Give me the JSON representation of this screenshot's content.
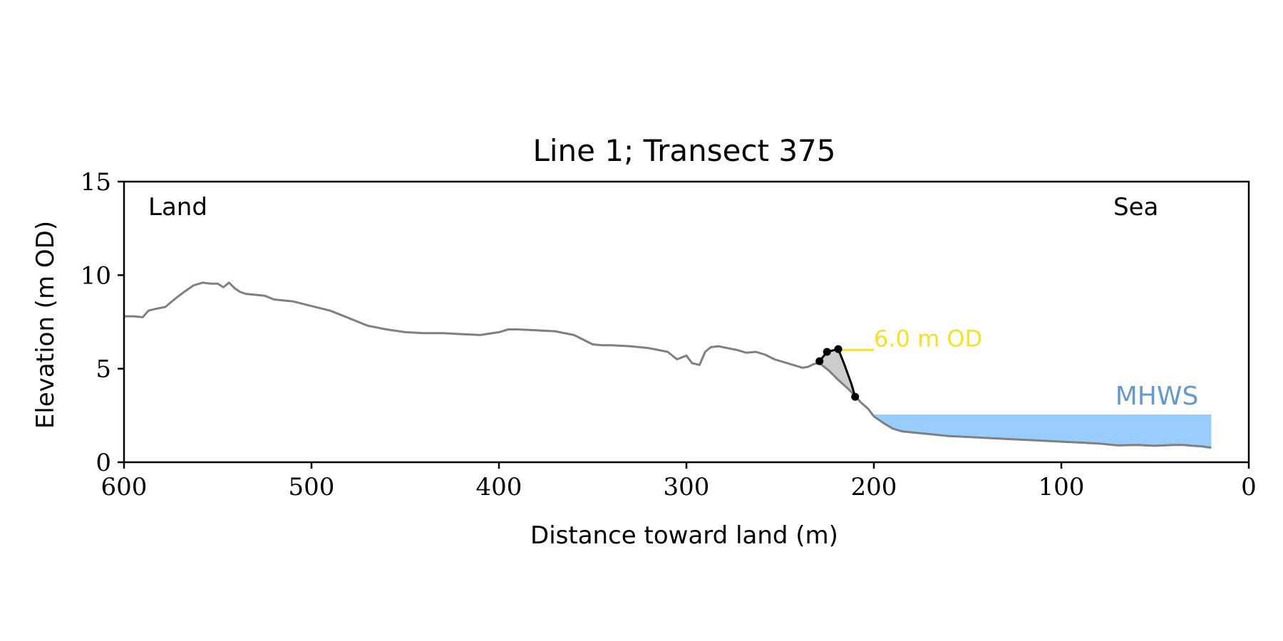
{
  "chart_data": {
    "type": "line",
    "title": "Line 1; Transect 375",
    "xlabel": "Distance toward land (m)",
    "ylabel": "Elevation (m OD)",
    "xlim": [
      600,
      0
    ],
    "ylim": [
      0,
      15
    ],
    "xticks": [
      600,
      500,
      400,
      300,
      200,
      100,
      0
    ],
    "yticks": [
      0,
      5,
      10,
      15
    ],
    "grid": false,
    "annotations": {
      "land_label": "Land",
      "sea_label": "Sea",
      "mhws_label": "MHWS",
      "threshold_label": "6.0 m OD"
    },
    "colors": {
      "profile": "#808080",
      "cliff": "#000000",
      "fill": "#cccccc",
      "mhws": "#99ccff",
      "mhws_text": "#6699cc",
      "threshold": "#f5e02a"
    },
    "profile": {
      "x": [
        600,
        595,
        590,
        587,
        583,
        578,
        572,
        568,
        563,
        558,
        554,
        550,
        547,
        544,
        541,
        538,
        535,
        530,
        525,
        520,
        510,
        500,
        490,
        480,
        470,
        460,
        450,
        440,
        430,
        420,
        410,
        400,
        395,
        390,
        380,
        370,
        360,
        350,
        345,
        340,
        330,
        320,
        310,
        305,
        300,
        297,
        293,
        290,
        287,
        283,
        278,
        273,
        268,
        263,
        258,
        253,
        248,
        243,
        238,
        235,
        232,
        229,
        224,
        219,
        214,
        210,
        207,
        203,
        200,
        195,
        190,
        185,
        180,
        170,
        160,
        150,
        140,
        130,
        120,
        110,
        100,
        90,
        80,
        75,
        70,
        60,
        55,
        50,
        45,
        40,
        35,
        30,
        25,
        22,
        20
      ],
      "y": [
        7.8,
        7.8,
        7.75,
        8.1,
        8.2,
        8.3,
        8.8,
        9.1,
        9.45,
        9.6,
        9.55,
        9.55,
        9.35,
        9.6,
        9.3,
        9.1,
        9.0,
        8.95,
        8.9,
        8.7,
        8.6,
        8.35,
        8.1,
        7.7,
        7.3,
        7.1,
        6.95,
        6.9,
        6.9,
        6.85,
        6.8,
        6.95,
        7.1,
        7.1,
        7.05,
        7.0,
        6.8,
        6.3,
        6.25,
        6.25,
        6.2,
        6.1,
        5.9,
        5.5,
        5.7,
        5.3,
        5.2,
        5.9,
        6.15,
        6.2,
        6.1,
        6.0,
        5.85,
        5.9,
        5.75,
        5.5,
        5.35,
        5.2,
        5.05,
        5.1,
        5.25,
        5.3,
        4.9,
        4.4,
        3.95,
        3.55,
        3.2,
        2.85,
        2.45,
        2.1,
        1.8,
        1.65,
        1.6,
        1.5,
        1.4,
        1.35,
        1.3,
        1.25,
        1.2,
        1.15,
        1.1,
        1.05,
        1.0,
        0.95,
        0.9,
        0.92,
        0.9,
        0.88,
        0.9,
        0.92,
        0.92,
        0.88,
        0.85,
        0.8,
        0.78
      ]
    },
    "cliff_line": {
      "x": [
        229,
        225,
        219,
        216,
        212,
        210
      ],
      "y": [
        5.4,
        5.9,
        6.05,
        5.3,
        4.2,
        3.5
      ]
    },
    "cliff_points": {
      "x": [
        229,
        225,
        219,
        210
      ],
      "y": [
        5.4,
        5.9,
        6.05,
        3.5
      ]
    },
    "threshold": {
      "y": 6.0,
      "x_start": 219,
      "x_end": 200
    },
    "mhws": {
      "y": 2.55,
      "x_start": 200,
      "x_end": 20
    }
  }
}
